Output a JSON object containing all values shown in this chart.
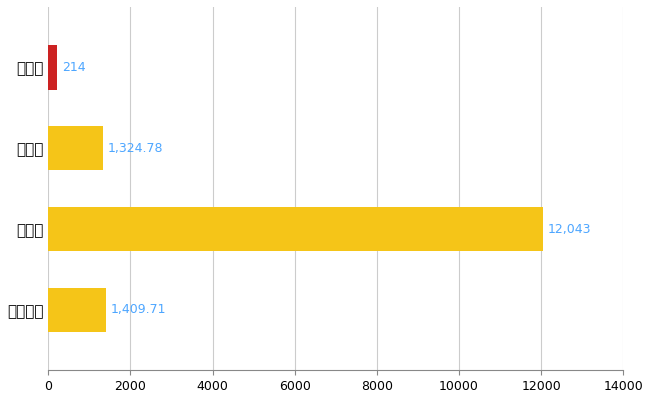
{
  "categories": [
    "皊野町",
    "県平均",
    "県最大",
    "全国平均"
  ],
  "values": [
    214,
    1324.78,
    12043,
    1409.71
  ],
  "bar_colors": [
    "#cc2222",
    "#f5c518",
    "#f5c518",
    "#f5c518"
  ],
  "value_labels": [
    "214",
    "1,324.78",
    "12,043",
    "1,409.71"
  ],
  "label_color": "#4da6ff",
  "xlim": [
    0,
    14000
  ],
  "xticks": [
    0,
    2000,
    4000,
    6000,
    8000,
    10000,
    12000,
    14000
  ],
  "grid_color": "#cccccc",
  "bar_height": 0.55,
  "background_color": "#ffffff",
  "label_fontsize": 9,
  "tick_fontsize": 9,
  "ytick_fontsize": 11
}
